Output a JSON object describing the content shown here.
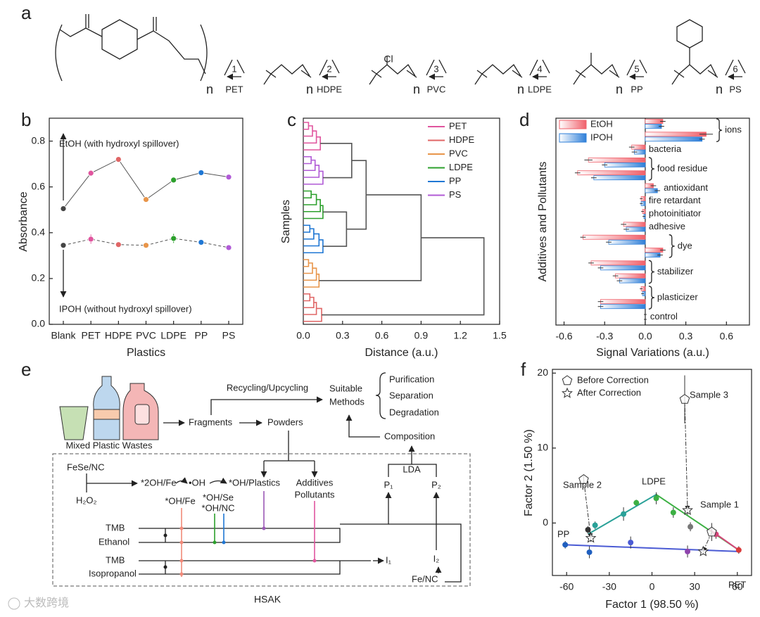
{
  "panel_labels": [
    "a",
    "b",
    "c",
    "d",
    "e",
    "f"
  ],
  "structures": {
    "repeat": "n",
    "substituent": "Cl",
    "items": [
      {
        "code": "1",
        "name": "PET"
      },
      {
        "code": "2",
        "name": "HDPE"
      },
      {
        "code": "3",
        "name": "PVC"
      },
      {
        "code": "4",
        "name": "LDPE"
      },
      {
        "code": "5",
        "name": "PP"
      },
      {
        "code": "6",
        "name": "PS"
      }
    ]
  },
  "chart_data": [
    {
      "type": "line",
      "xlabel": "Plastics",
      "ylabel": "Absorbance",
      "categories": [
        "Blank",
        "PET",
        "HDPE",
        "PVC",
        "LDPE",
        "PP",
        "PS"
      ],
      "ylim": [
        0,
        0.9
      ],
      "yticks": [
        {
          "value": 0,
          "label": "0.0"
        },
        0.2,
        0.4,
        0.6,
        0.8
      ],
      "point_colors": [
        "#444444",
        "#e0559e",
        "#e06666",
        "#e8954a",
        "#2ca02c",
        "#1f77d4",
        "#b05ad6"
      ],
      "series": [
        {
          "name": "EtOH (with hydroxyl spillover)",
          "color": "#555555",
          "dashed": false,
          "values": [
            0.505,
            0.66,
            0.72,
            0.545,
            0.63,
            0.662,
            0.643
          ],
          "errors": [
            0.008,
            0.005,
            0.005,
            0.005,
            0.01,
            0.005,
            0.005
          ]
        },
        {
          "name": "IPOH (without hydroxyl spillover)",
          "color": "#555555",
          "dashed": true,
          "values": [
            0.345,
            0.372,
            0.348,
            0.345,
            0.375,
            0.358,
            0.335
          ],
          "errors": [
            0.005,
            0.02,
            0.005,
            0.005,
            0.02,
            0.005,
            0.005
          ]
        }
      ]
    },
    {
      "type": "dendrogram",
      "xlabel": "Distance (a.u.)",
      "ylabel": "Samples",
      "xlim": [
        0,
        1.5
      ],
      "xticks": [
        {
          "value": 0,
          "label": "0.0"
        },
        0.3,
        0.6,
        0.9,
        1.2,
        1.5
      ],
      "series": [
        {
          "name": "PET",
          "color": "#e0559e",
          "values": [
            0.04,
            0.07,
            0.1,
            0.13
          ]
        },
        {
          "name": "HDPE",
          "color": "#e06666",
          "values": [
            0.05,
            0.08,
            0.1,
            0.14
          ]
        },
        {
          "name": "PVC",
          "color": "#e8954a",
          "values": [
            0.04,
            0.07,
            0.1,
            0.12
          ]
        },
        {
          "name": "LDPE",
          "color": "#2ca02c",
          "values": [
            0.06,
            0.1,
            0.13,
            0.15
          ]
        },
        {
          "name": "PP",
          "color": "#1f77d4",
          "values": [
            0.05,
            0.08,
            0.12,
            0.15
          ]
        },
        {
          "name": "PS",
          "color": "#b05ad6",
          "values": [
            0.06,
            0.09,
            0.12,
            0.15
          ]
        }
      ],
      "links": [
        0.37,
        0.33,
        0.48,
        0.9,
        1.38
      ],
      "link_color": "#555555"
    },
    {
      "type": "barh",
      "xlabel": "Signal Variations (a.u.)",
      "ylabel": "Additives and Pollutants",
      "categories": [
        "ions",
        null,
        "bacteria",
        "food residue",
        null,
        "antioxidant",
        "fire retardant",
        "photoinitiator",
        "adhesive",
        "dye",
        null,
        "stabilizer",
        null,
        "plasticizer",
        null,
        "control"
      ],
      "xlim": [
        -0.66,
        0.77
      ],
      "xticks": [
        -0.6,
        -0.3,
        {
          "value": 0,
          "label": "0.0"
        },
        0.3,
        0.6
      ],
      "series": [
        {
          "name": "EtOH",
          "color": "#f0606a",
          "values": [
            0.13,
            0.45,
            -0.1,
            -0.42,
            -0.5,
            0.06,
            -0.03,
            -0.02,
            -0.16,
            -0.46,
            0.13,
            -0.4,
            -0.22,
            -0.03,
            -0.33,
            0
          ],
          "errors": [
            0.02,
            0.05,
            0.02,
            0.03,
            0.02,
            0.02,
            0.01,
            0.01,
            0.02,
            0.02,
            0.02,
            0.02,
            0.02,
            0.01,
            0.02,
            0.01
          ]
        },
        {
          "name": "IPOH",
          "color": "#2f7fd8",
          "values": [
            0.12,
            0.42,
            -0.08,
            -0.3,
            -0.38,
            0.09,
            -0.03,
            -0.01,
            -0.14,
            -0.27,
            0.11,
            -0.33,
            -0.19,
            -0.02,
            -0.33,
            0
          ],
          "errors": [
            0.02,
            0.02,
            0.02,
            0.02,
            0.02,
            0.02,
            0.01,
            0.01,
            0.02,
            0.02,
            0.02,
            0.02,
            0.02,
            0.01,
            0.02,
            0.01
          ]
        }
      ]
    },
    {
      "type": "scatter",
      "xlabel": "Factor 1 (98.50 %)",
      "ylabel": "Factor 2 (1.50 %)",
      "xlim": [
        -70,
        70
      ],
      "xticks": [
        -60,
        -30,
        0,
        30,
        60
      ],
      "ylim": [
        -7,
        20.5
      ],
      "yticks": [
        0,
        10,
        20
      ],
      "series": [
        {
          "name": "Before Correction",
          "marker": "pentagon",
          "x": [
            -48,
            23,
            42
          ],
          "y": [
            5.8,
            16.5,
            -1.2
          ],
          "errors": [
            0.6,
            3.2,
            1.2
          ]
        },
        {
          "name": "After Correction",
          "marker": "star",
          "x": [
            -43,
            25,
            36
          ],
          "y": [
            -2,
            1.7,
            -3.8
          ],
          "errors": [
            0.5,
            0.6,
            0.4
          ]
        }
      ],
      "sample_labels": [
        "Sample 2",
        "Sample 3",
        "Sample 1"
      ],
      "points": {
        "x": [
          -61,
          -44,
          -45,
          -40,
          -20,
          -11,
          3,
          15,
          27,
          45,
          61,
          -15,
          25
        ],
        "y": [
          -2.9,
          -3.9,
          -0.9,
          -0.3,
          1.2,
          2.7,
          3.3,
          1.4,
          -0.5,
          -1.5,
          -3.6,
          -2.6,
          -3.8
        ],
        "colors": [
          "#1f5fbf",
          "#1f5fbf",
          "#333333",
          "#2aa198",
          "#2aa198",
          "#3cb043",
          "#3cb043",
          "#3cb043",
          "#777777",
          "#d6457a",
          "#d93a3a",
          "#4b5bd4",
          "#8e44ad"
        ],
        "errors": [
          0.5,
          0.8,
          0.5,
          0.5,
          0.9,
          0.4,
          0.8,
          0.7,
          0.6,
          0.6,
          0.5,
          0.8,
          0.8
        ]
      },
      "lines": [
        {
          "color": "#2aa198",
          "x": [
            -45,
            3
          ],
          "y": [
            -1.5,
            3.8
          ]
        },
        {
          "color": "#3cb043",
          "x": [
            3,
            61
          ],
          "y": [
            3.8,
            -3.6
          ]
        },
        {
          "color": "#4b5bd4",
          "x": [
            -61,
            61
          ],
          "y": [
            -2.9,
            -3.8
          ]
        },
        {
          "color": "#d6457a",
          "x": [
            40,
            61
          ],
          "y": [
            -0.8,
            -3.6
          ]
        }
      ],
      "group_labels": [
        "PP",
        "LDPE",
        "PET"
      ]
    }
  ],
  "diagram": {
    "recycling": "Recycling/Upcycling",
    "suitable": "Suitable",
    "methods": "Methods",
    "purification": "Purification",
    "separation": "Separation",
    "degradation": "Degradation",
    "wastes": "Mixed Plastic Wastes",
    "fragments": "Fragments",
    "powders": "Powders",
    "composition": "Composition",
    "lda": "LDA",
    "catalyst": "FeSe/NC",
    "peroxide": "H₂O₂",
    "oh_fe2": "*2OH/Fe",
    "radical": "•OH",
    "oh_plastics": "*OH/Plastics",
    "additives": "Additives",
    "pollutants": "Pollutants",
    "oh_fe": "*OH/Fe",
    "oh_se": "*OH/Se",
    "oh_nc": "*OH/NC",
    "p1": "P₁",
    "p2": "P₂",
    "tmb": "TMB",
    "ethanol": "Ethanol",
    "isopropanol": "Isopropanol",
    "i1": "I₁",
    "i2": "I₂",
    "fe_nc": "Fe/NC",
    "hsak": "HSAK"
  },
  "watermark": "大数跨境"
}
